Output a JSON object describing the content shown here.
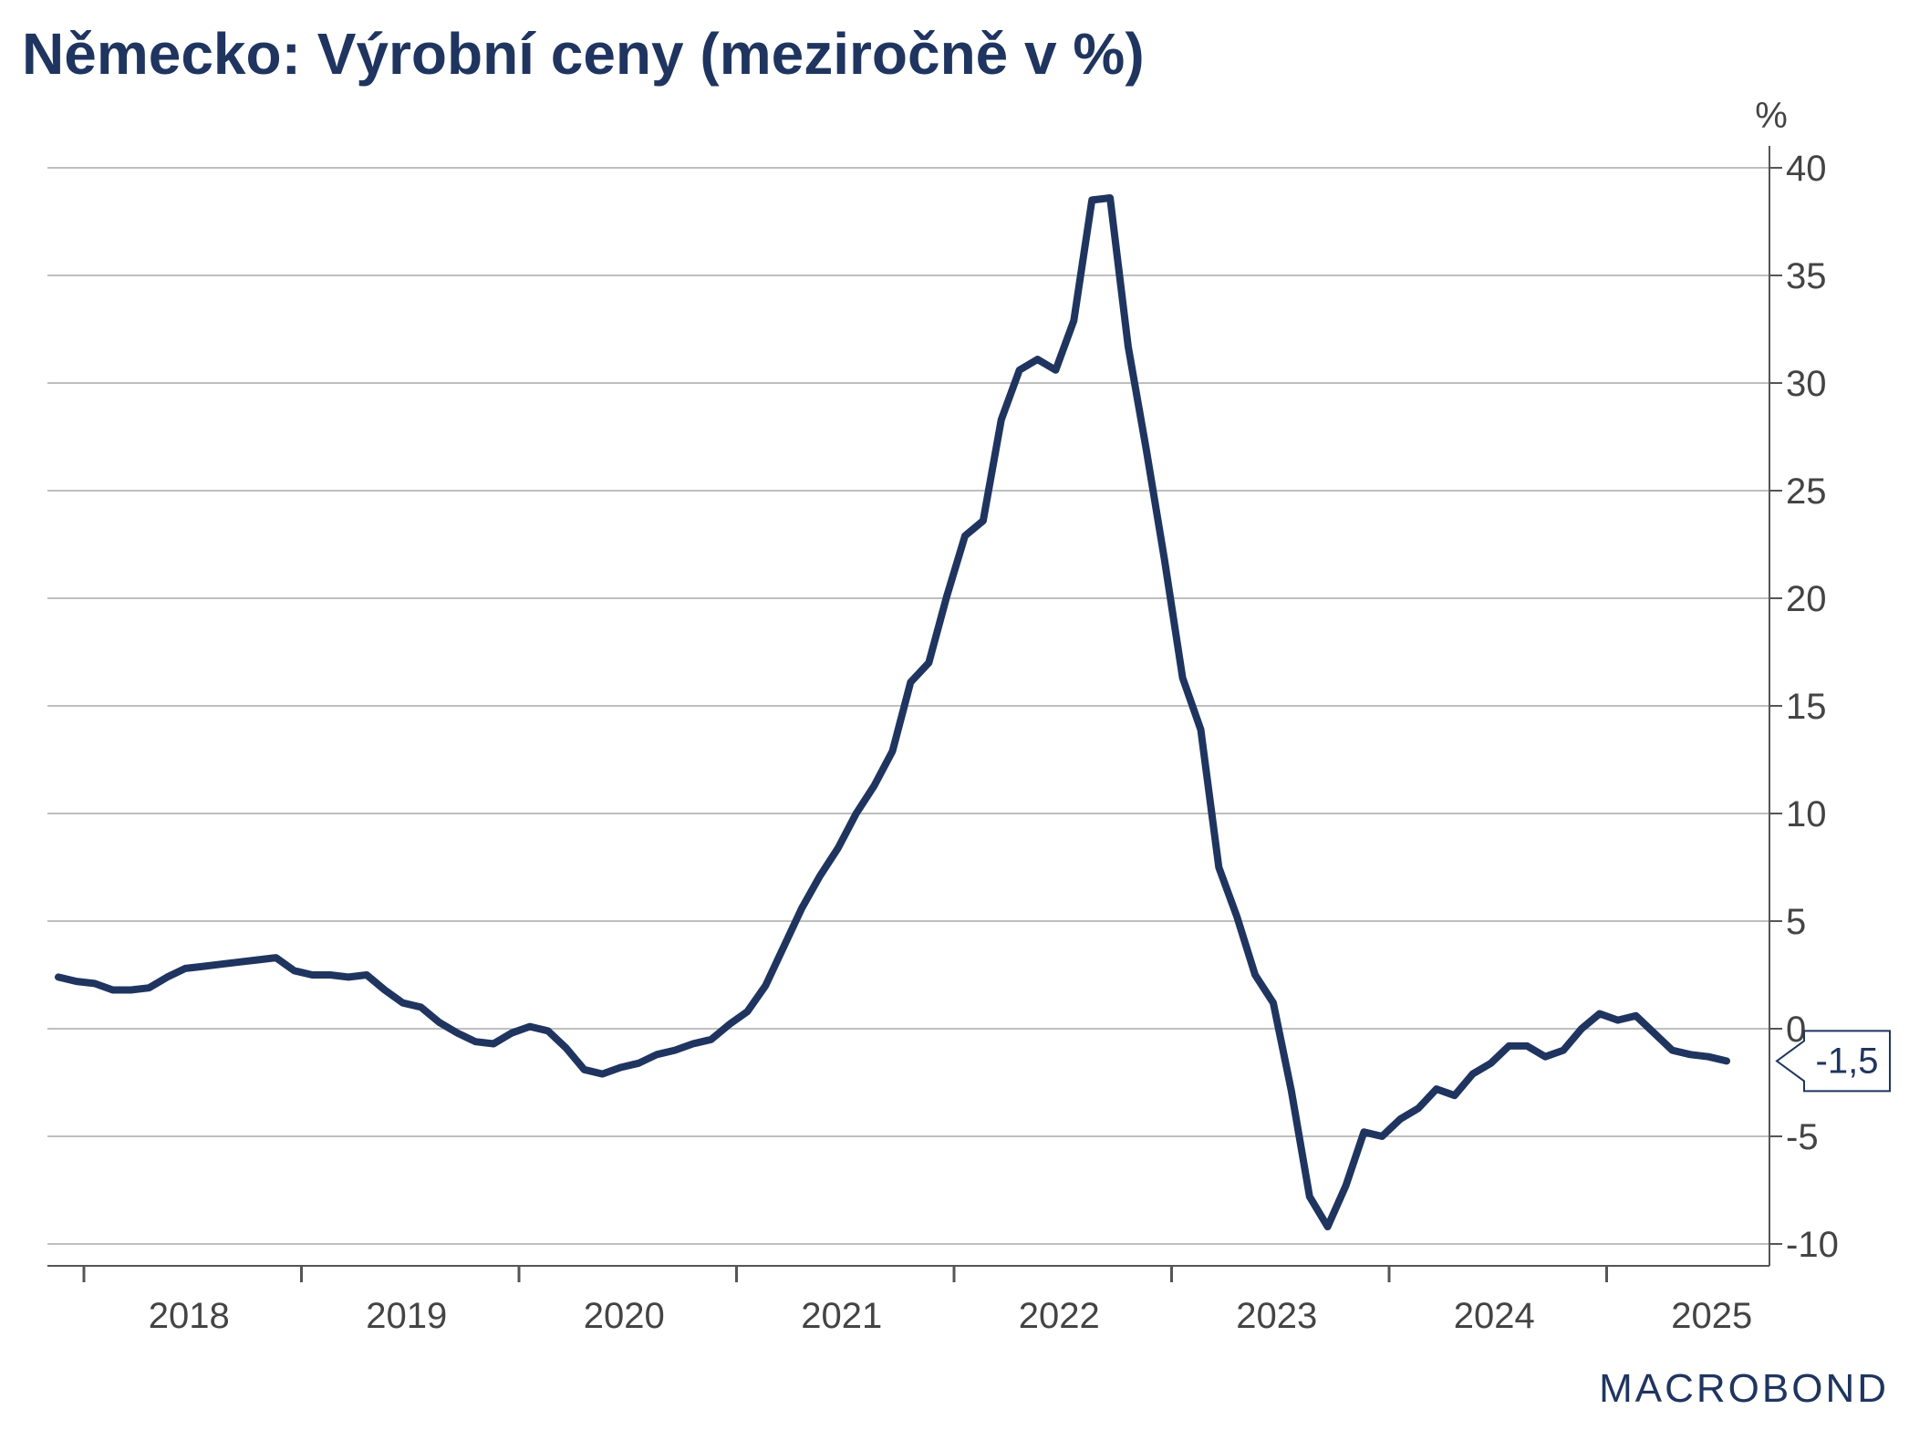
{
  "title": "Německo: Výrobní ceny (meziročně v %)",
  "logo_text": "MACROBOND",
  "colors": {
    "line": "#1f3560",
    "grid": "#bfbfbf",
    "axis": "#555555",
    "text": "#444444",
    "title": "#1f3560"
  },
  "chart_data": {
    "type": "line",
    "title": "Německo: Výrobní ceny (meziročně v %)",
    "y_unit": "%",
    "ylim": [
      -10,
      40
    ],
    "y_ticks": [
      40,
      35,
      30,
      25,
      20,
      15,
      10,
      5,
      0,
      -5,
      -10
    ],
    "x_ticks": [
      "2018",
      "2019",
      "2020",
      "2021",
      "2022",
      "2023",
      "2024",
      "2025"
    ],
    "x_start": "2017-12",
    "grid": "horizontal",
    "last_value_label": "-1,5",
    "series": [
      {
        "values": [
          2.4,
          2.2,
          2.1,
          1.8,
          1.8,
          1.9,
          2.4,
          2.8,
          2.9,
          3.0,
          3.1,
          3.2,
          3.3,
          2.7,
          2.5,
          2.5,
          2.4,
          2.5,
          1.8,
          1.2,
          1.0,
          0.3,
          -0.2,
          -0.6,
          -0.7,
          -0.2,
          0.1,
          -0.1,
          -0.9,
          -1.9,
          -2.1,
          -1.8,
          -1.6,
          -1.2,
          -1.0,
          -0.7,
          -0.5,
          0.2,
          0.8,
          2.0,
          3.8,
          5.6,
          7.1,
          8.4,
          10.0,
          11.3,
          12.9,
          16.1,
          17.0,
          20.1,
          22.9,
          23.6,
          28.3,
          30.6,
          31.1,
          30.6,
          32.9,
          38.5,
          38.6,
          31.7,
          26.9,
          21.8,
          16.3,
          13.9,
          7.5,
          5.2,
          2.5,
          1.2,
          -2.9,
          -7.8,
          -9.2,
          -7.3,
          -4.8,
          -5.0,
          -4.2,
          -3.7,
          -2.8,
          -3.1,
          -2.1,
          -1.6,
          -0.8,
          -0.8,
          -1.3,
          -1.0,
          0.0,
          0.7,
          0.4,
          0.6,
          -0.2,
          -1.0,
          -1.2,
          -1.3,
          -1.5
        ]
      }
    ]
  }
}
